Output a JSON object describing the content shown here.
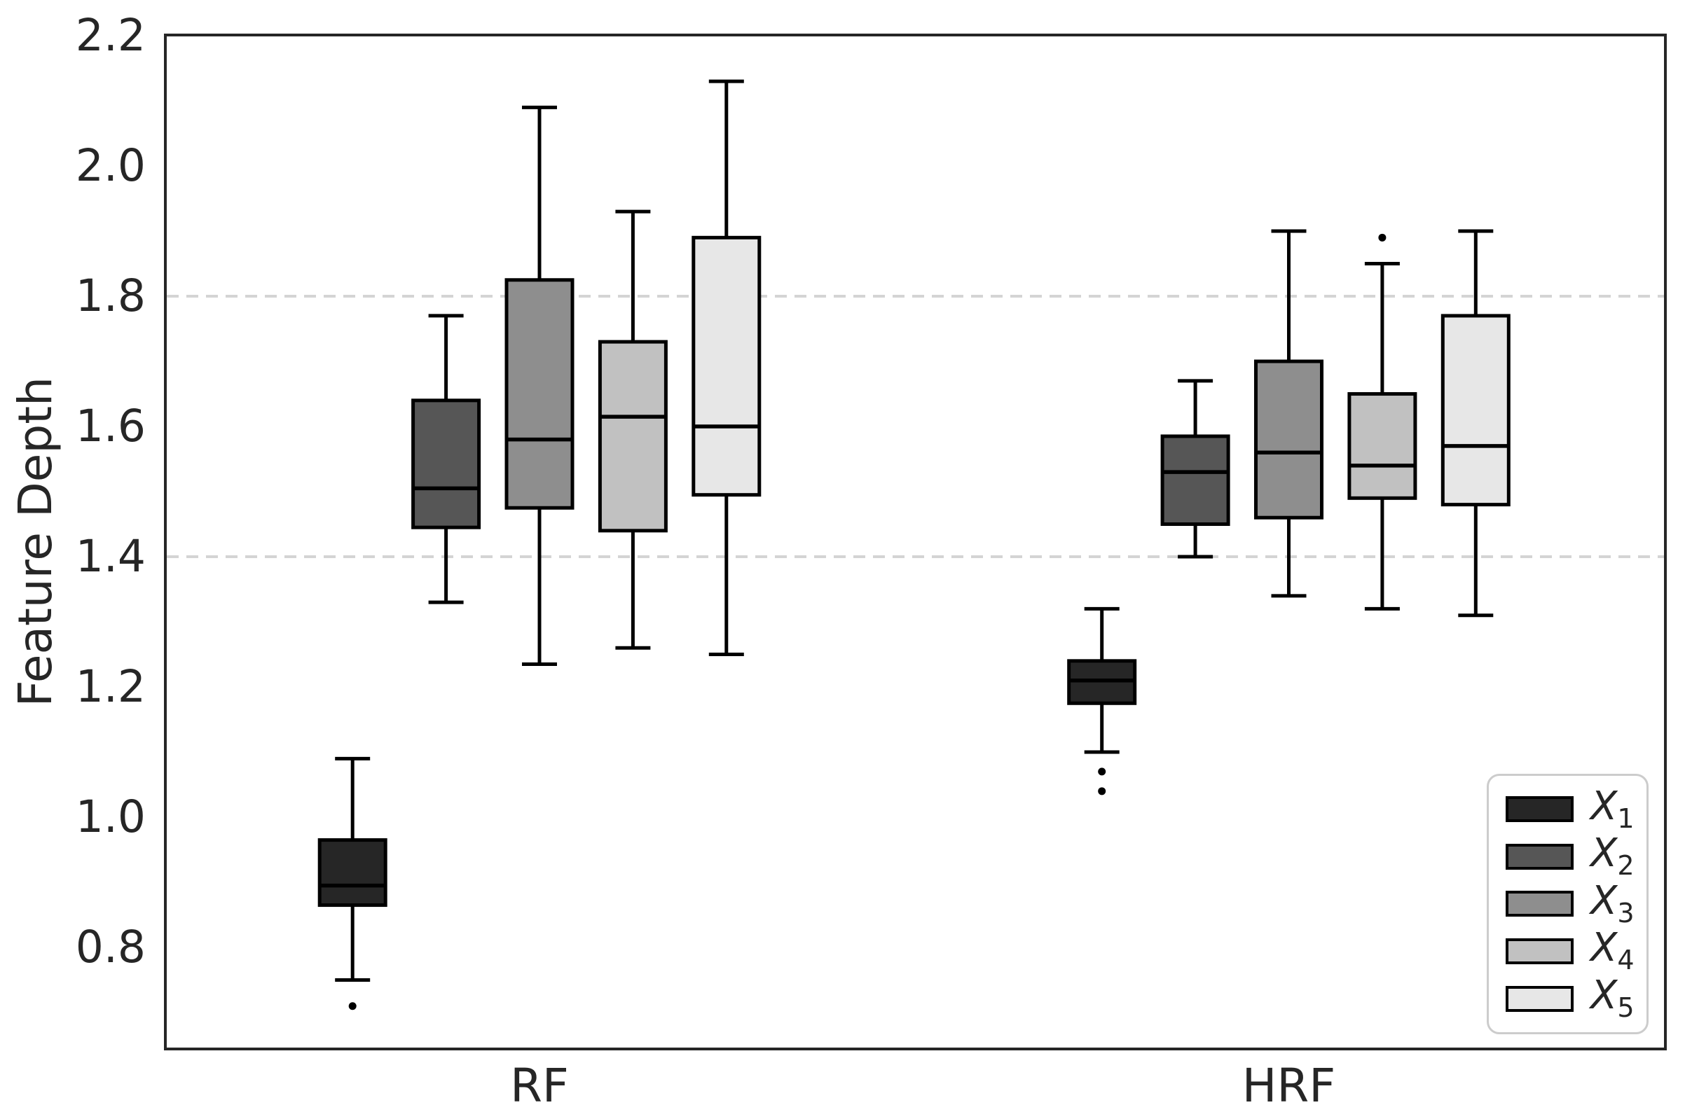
{
  "chart_data": {
    "type": "boxplot",
    "title": "",
    "xlabel": "",
    "ylabel": "Feature Depth",
    "categories": [
      "RF",
      "HRF"
    ],
    "yticks": [
      0.8,
      1.0,
      1.2,
      1.4,
      1.6,
      1.8,
      2.0,
      2.2
    ],
    "ytick_labels": [
      "0.8",
      "1.0",
      "1.2",
      "1.4",
      "1.6",
      "1.8",
      "2.0",
      "2.2"
    ],
    "ylim": [
      0.64,
      2.2
    ],
    "gridlines_y": [
      1.4,
      1.8
    ],
    "grid_style": "dashed",
    "colors": {
      "box_edge": "#000000",
      "spine": "#262626",
      "grid": "#d4d4d4",
      "text": "#262626",
      "background": "#ffffff",
      "legend_border": "#cccccc"
    },
    "legend": {
      "position": "lower right",
      "entries": [
        {
          "base": "X",
          "sub": "1",
          "color": "#262626"
        },
        {
          "base": "X",
          "sub": "2",
          "color": "#565656"
        },
        {
          "base": "X",
          "sub": "3",
          "color": "#8e8e8e"
        },
        {
          "base": "X",
          "sub": "4",
          "color": "#c1c1c1"
        },
        {
          "base": "X",
          "sub": "5",
          "color": "#e7e7e7"
        }
      ]
    },
    "series": [
      {
        "name": "X1",
        "color": "#262626",
        "groups": [
          {
            "group": "RF",
            "whislo": 0.75,
            "q1": 0.865,
            "med": 0.895,
            "q3": 0.965,
            "whishi": 1.09,
            "fliers": [
              0.71
            ]
          },
          {
            "group": "HRF",
            "whislo": 1.1,
            "q1": 1.175,
            "med": 1.21,
            "q3": 1.24,
            "whishi": 1.32,
            "fliers": [
              1.07,
              1.04
            ]
          }
        ]
      },
      {
        "name": "X2",
        "color": "#565656",
        "groups": [
          {
            "group": "RF",
            "whislo": 1.33,
            "q1": 1.445,
            "med": 1.505,
            "q3": 1.64,
            "whishi": 1.77,
            "fliers": []
          },
          {
            "group": "HRF",
            "whislo": 1.4,
            "q1": 1.45,
            "med": 1.53,
            "q3": 1.585,
            "whishi": 1.67,
            "fliers": []
          }
        ]
      },
      {
        "name": "X3",
        "color": "#8e8e8e",
        "groups": [
          {
            "group": "RF",
            "whislo": 1.235,
            "q1": 1.475,
            "med": 1.58,
            "q3": 1.825,
            "whishi": 2.09,
            "fliers": []
          },
          {
            "group": "HRF",
            "whislo": 1.34,
            "q1": 1.46,
            "med": 1.56,
            "q3": 1.7,
            "whishi": 1.9,
            "fliers": []
          }
        ]
      },
      {
        "name": "X4",
        "color": "#c1c1c1",
        "groups": [
          {
            "group": "RF",
            "whislo": 1.26,
            "q1": 1.44,
            "med": 1.615,
            "q3": 1.73,
            "whishi": 1.93,
            "fliers": []
          },
          {
            "group": "HRF",
            "whislo": 1.32,
            "q1": 1.49,
            "med": 1.54,
            "q3": 1.65,
            "whishi": 1.85,
            "fliers": [
              1.89
            ]
          }
        ]
      },
      {
        "name": "X5",
        "color": "#e7e7e7",
        "groups": [
          {
            "group": "RF",
            "whislo": 1.25,
            "q1": 1.495,
            "med": 1.6,
            "q3": 1.89,
            "whishi": 2.13,
            "fliers": []
          },
          {
            "group": "HRF",
            "whislo": 1.31,
            "q1": 1.48,
            "med": 1.57,
            "q3": 1.77,
            "whishi": 1.9,
            "fliers": []
          }
        ]
      }
    ]
  }
}
